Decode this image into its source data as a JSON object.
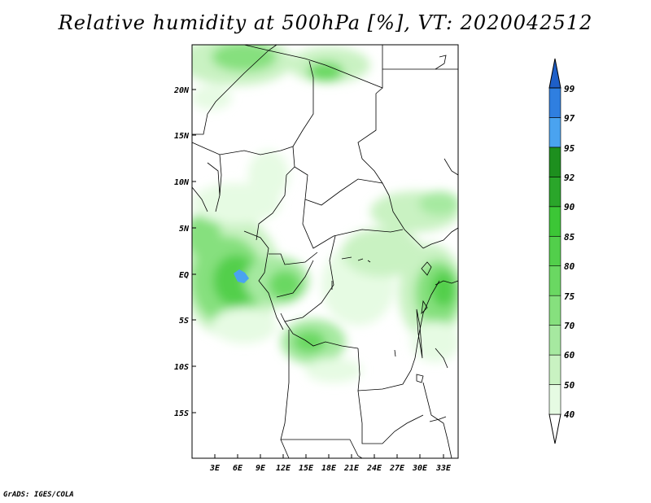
{
  "title": "Relative humidity at 500hPa [%], VT: 2020042512",
  "credit": "GrADS: IGES/COLA",
  "map": {
    "lat_labels": [
      "20N",
      "15N",
      "10N",
      "5N",
      "EQ",
      "5S",
      "10S",
      "15S"
    ],
    "lon_labels": [
      "3E",
      "6E",
      "9E",
      "12E",
      "15E",
      "18E",
      "21E",
      "24E",
      "27E",
      "30E",
      "33E"
    ]
  },
  "colorbar": {
    "levels": [
      "40",
      "50",
      "60",
      "70",
      "75",
      "80",
      "85",
      "90",
      "92",
      "95",
      "97",
      "99"
    ],
    "colors": [
      "#e6fbe3",
      "#c9f2c2",
      "#a6e9a0",
      "#86e07e",
      "#6ad862",
      "#52cf4b",
      "#3cc636",
      "#2aa62a",
      "#1d8f1e",
      "#4aa3f0",
      "#2f7fe0",
      "#1e5fc8"
    ]
  }
}
